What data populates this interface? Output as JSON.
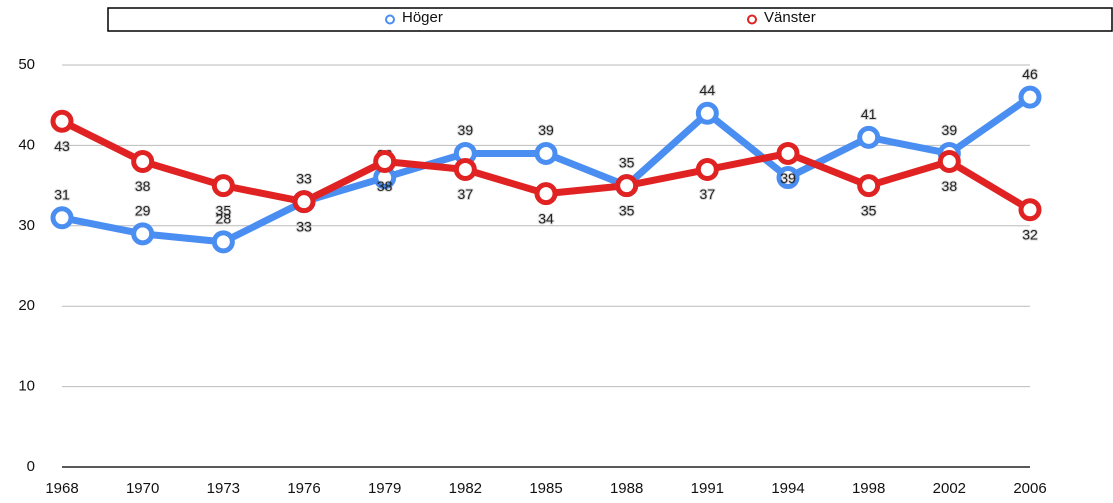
{
  "chart_data": {
    "type": "line",
    "categories": [
      "1968",
      "1970",
      "1973",
      "1976",
      "1979",
      "1982",
      "1985",
      "1988",
      "1991",
      "1994",
      "1998",
      "2002",
      "2006"
    ],
    "series": [
      {
        "name": "Höger",
        "color": "#4a8ef2",
        "values": [
          31,
          29,
          28,
          33,
          36,
          39,
          39,
          35,
          44,
          36,
          41,
          39,
          46
        ]
      },
      {
        "name": "Vänster",
        "color": "#e02222",
        "values": [
          43,
          38,
          35,
          33,
          38,
          37,
          34,
          35,
          37,
          39,
          35,
          38,
          32
        ]
      }
    ],
    "ylim": [
      0,
      50
    ],
    "yticks": [
      0,
      10,
      20,
      30,
      40,
      50
    ],
    "grid": true,
    "legend": "top"
  }
}
